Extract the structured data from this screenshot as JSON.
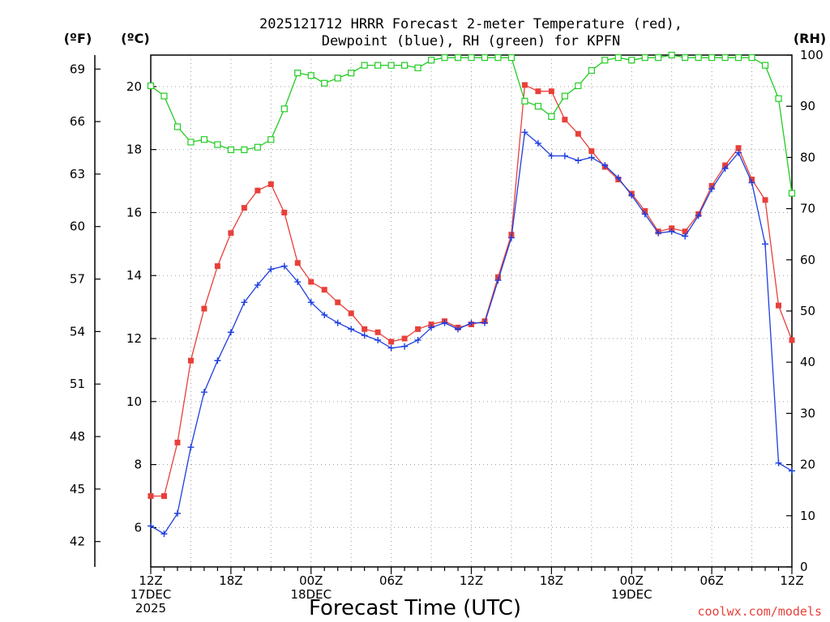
{
  "chart_data": {
    "type": "line",
    "title_line1": "2025121712 HRRR Forecast 2-meter Temperature (red),",
    "title_line2": "Dewpoint (blue), RH (green) for KPFN",
    "xlabel": "Forecast Time (UTC)",
    "credit": "coolwx.com/models",
    "units": {
      "fahrenheit": "(ºF)",
      "celsius": "(ºC)",
      "rh": "(RH)"
    },
    "x_range_hours": [
      0,
      48
    ],
    "celsius_range": [
      4.75,
      21.0
    ],
    "rh_range": [
      0,
      100
    ],
    "grid": true,
    "celsius_ticks": [
      6,
      8,
      10,
      12,
      14,
      16,
      18,
      20
    ],
    "fahrenheit_ticks": [
      42,
      45,
      48,
      51,
      54,
      57,
      60,
      63,
      66,
      69
    ],
    "rh_ticks": [
      0,
      10,
      20,
      30,
      40,
      50,
      60,
      70,
      80,
      90,
      100
    ],
    "x_ticks": [
      {
        "hour": 0,
        "lines": [
          "12Z",
          "17DEC",
          "2025"
        ]
      },
      {
        "hour": 6,
        "lines": [
          "18Z"
        ]
      },
      {
        "hour": 12,
        "lines": [
          "00Z",
          "18DEC"
        ]
      },
      {
        "hour": 18,
        "lines": [
          "06Z"
        ]
      },
      {
        "hour": 24,
        "lines": [
          "12Z"
        ]
      },
      {
        "hour": 30,
        "lines": [
          "18Z"
        ]
      },
      {
        "hour": 36,
        "lines": [
          "00Z",
          "19DEC"
        ]
      },
      {
        "hour": 42,
        "lines": [
          "06Z"
        ]
      },
      {
        "hour": 48,
        "lines": [
          "12Z"
        ]
      }
    ],
    "series": [
      {
        "name": "Temperature",
        "axis": "celsius",
        "color": "#e8403a",
        "marker": "square-filled",
        "values": [
          7.0,
          7.0,
          8.7,
          11.3,
          12.95,
          14.3,
          15.35,
          16.15,
          16.7,
          16.9,
          16.0,
          14.4,
          13.8,
          13.55,
          13.15,
          12.8,
          12.3,
          12.2,
          11.9,
          12.0,
          12.3,
          12.45,
          12.55,
          12.35,
          12.45,
          12.55,
          13.95,
          15.3,
          20.05,
          19.85,
          19.85,
          18.95,
          18.5,
          17.95,
          17.45,
          17.05,
          16.6,
          16.05,
          15.4,
          15.5,
          15.4,
          15.95,
          16.85,
          17.5,
          18.05,
          17.05,
          16.4,
          13.05,
          11.95
        ]
      },
      {
        "name": "Dewpoint",
        "axis": "celsius",
        "color": "#1f3fe0",
        "marker": "plus",
        "values": [
          6.05,
          5.8,
          6.45,
          8.55,
          10.3,
          11.3,
          12.2,
          13.15,
          13.7,
          14.2,
          14.3,
          13.8,
          13.15,
          12.75,
          12.5,
          12.3,
          12.1,
          11.95,
          11.7,
          11.75,
          11.95,
          12.35,
          12.5,
          12.3,
          12.5,
          12.5,
          13.85,
          15.2,
          18.55,
          18.2,
          17.8,
          17.8,
          17.65,
          17.75,
          17.5,
          17.1,
          16.55,
          15.95,
          15.35,
          15.4,
          15.25,
          15.9,
          16.75,
          17.4,
          17.9,
          16.95,
          15.0,
          8.05,
          7.8
        ]
      },
      {
        "name": "RH",
        "axis": "rh",
        "color": "#22cc22",
        "marker": "square-open",
        "values": [
          94,
          92,
          86,
          83,
          83.5,
          82.5,
          81.5,
          81.5,
          82,
          83.5,
          89.5,
          96.5,
          96,
          94.5,
          95.5,
          96.5,
          98,
          98,
          98,
          98,
          97.5,
          99,
          99.5,
          99.5,
          99.5,
          99.5,
          99.5,
          99.5,
          91,
          90,
          88,
          92,
          94,
          97,
          99,
          99.5,
          99,
          99.5,
          99.5,
          100,
          99.5,
          99.5,
          99.5,
          99.5,
          99.5,
          99.5,
          98,
          91.5,
          73
        ]
      }
    ]
  }
}
